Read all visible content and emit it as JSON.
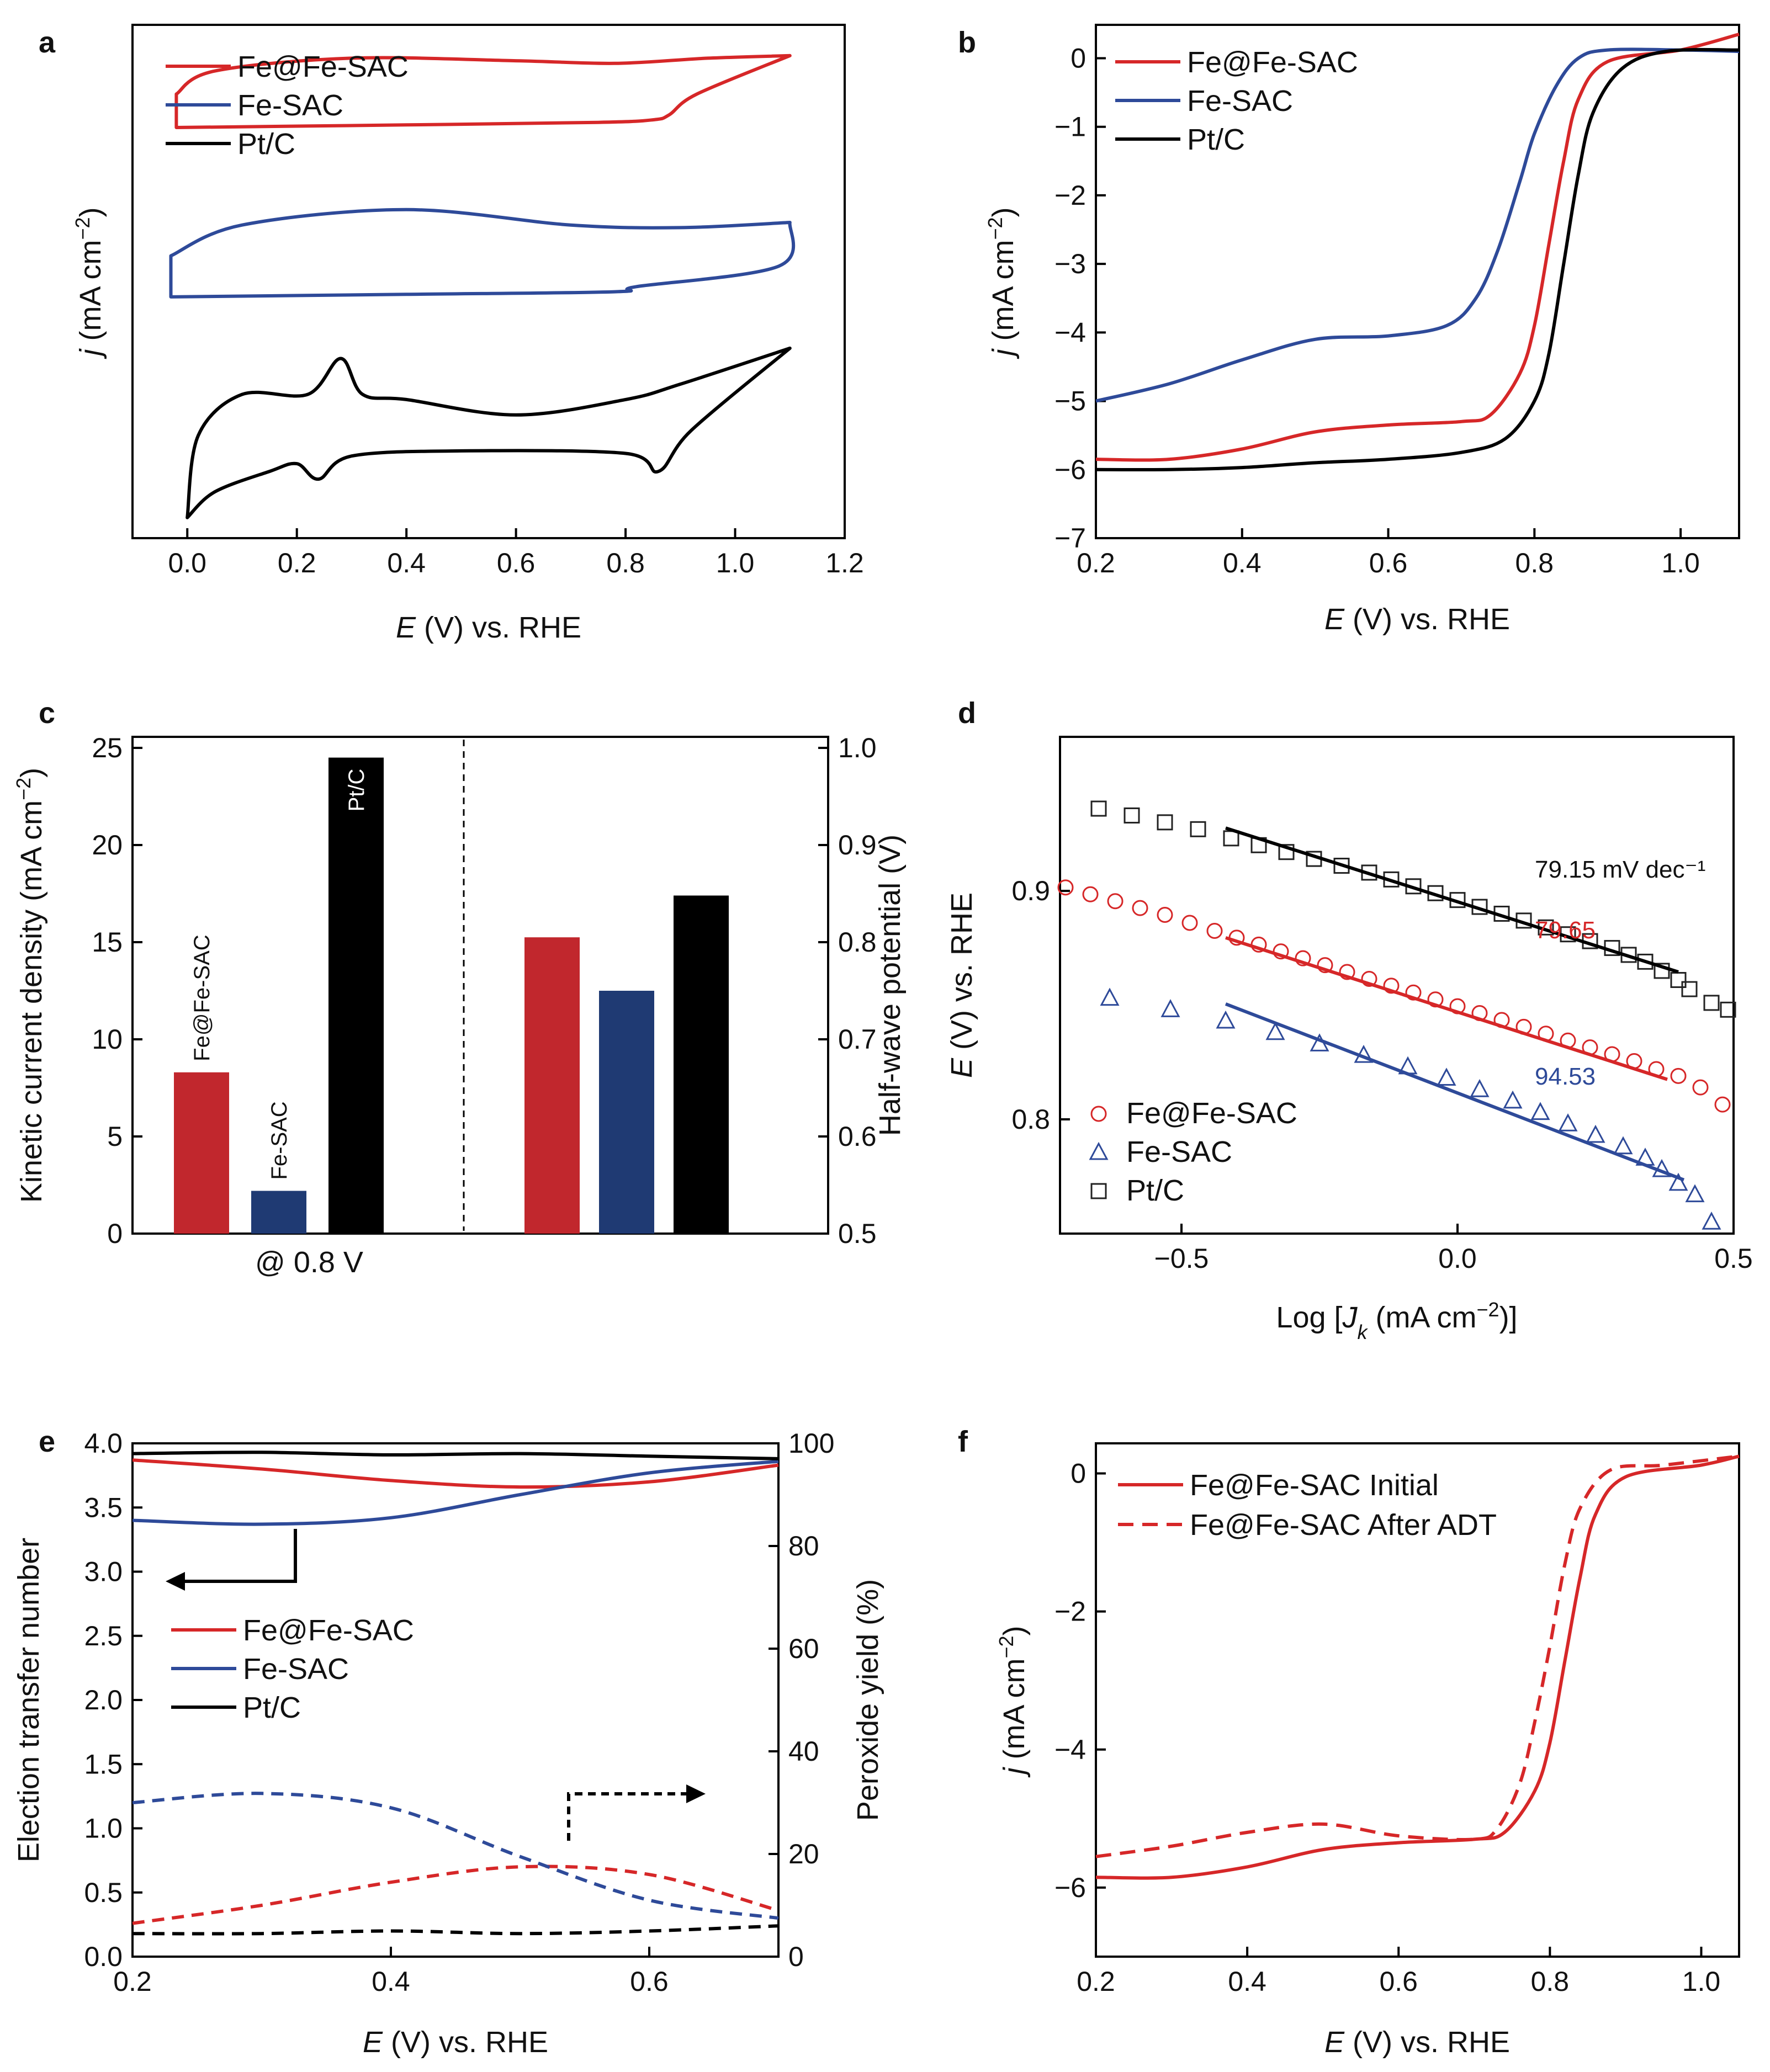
{
  "chart_data": [
    {
      "panel": "a",
      "type": "line",
      "title": "",
      "xlabel": "E (V) vs. RHE",
      "ylabel": "j (mA cm^-2)",
      "xlim": [
        -0.1,
        1.2
      ],
      "xticks": [
        "0.0",
        "0.2",
        "0.4",
        "0.6",
        "0.8",
        "1.0",
        "1.2"
      ],
      "legend": "top-left",
      "series": [
        {
          "name": "Fe@Fe-SAC",
          "color": "#d62728",
          "upper": [
            [
              -0.02,
              0.865
            ],
            [
              0.05,
              0.91
            ],
            [
              0.3,
              0.935
            ],
            [
              0.6,
              0.93
            ],
            [
              0.78,
              0.925
            ],
            [
              0.95,
              0.935
            ],
            [
              1.1,
              0.94
            ]
          ],
          "lower": [
            [
              -0.02,
              0.8
            ],
            [
              0.4,
              0.805
            ],
            [
              0.75,
              0.81
            ],
            [
              0.85,
              0.815
            ],
            [
              0.88,
              0.825
            ],
            [
              0.93,
              0.865
            ],
            [
              1.1,
              0.94
            ]
          ]
        },
        {
          "name": "Fe-SAC",
          "color": "#2e4a99",
          "upper": [
            [
              -0.03,
              0.55
            ],
            [
              0.1,
              0.61
            ],
            [
              0.4,
              0.64
            ],
            [
              0.7,
              0.61
            ],
            [
              0.9,
              0.605
            ],
            [
              1.1,
              0.615
            ]
          ],
          "lower": [
            [
              -0.03,
              0.47
            ],
            [
              0.4,
              0.475
            ],
            [
              0.78,
              0.48
            ],
            [
              0.82,
              0.49
            ],
            [
              1.08,
              0.53
            ],
            [
              1.1,
              0.615
            ]
          ]
        },
        {
          "name": "Pt/C",
          "color": "#000000",
          "upper": [
            [
              0.0,
              0.04
            ],
            [
              0.02,
              0.2
            ],
            [
              0.1,
              0.28
            ],
            [
              0.22,
              0.28
            ],
            [
              0.28,
              0.35
            ],
            [
              0.32,
              0.28
            ],
            [
              0.4,
              0.27
            ],
            [
              0.6,
              0.24
            ],
            [
              0.8,
              0.27
            ],
            [
              0.9,
              0.3
            ],
            [
              1.1,
              0.37
            ]
          ],
          "lower": [
            [
              0.0,
              0.04
            ],
            [
              0.05,
              0.09
            ],
            [
              0.15,
              0.13
            ],
            [
              0.2,
              0.145
            ],
            [
              0.24,
              0.115
            ],
            [
              0.3,
              0.16
            ],
            [
              0.5,
              0.17
            ],
            [
              0.8,
              0.165
            ],
            [
              0.86,
              0.13
            ],
            [
              0.92,
              0.21
            ],
            [
              1.1,
              0.37
            ]
          ]
        }
      ]
    },
    {
      "panel": "b",
      "type": "line",
      "xlabel": "E (V) vs. RHE",
      "ylabel": "j (mA cm^-2)",
      "xlim": [
        0.2,
        1.08
      ],
      "ylim": [
        -7,
        0.35
      ],
      "xticks": [
        "0.2",
        "0.4",
        "0.6",
        "0.8",
        "1.0"
      ],
      "yticks": [
        "0",
        "−1",
        "−2",
        "−3",
        "−4",
        "−5",
        "−6",
        "−7"
      ],
      "legend": "top-left",
      "series": [
        {
          "name": "Fe@Fe-SAC",
          "color": "#d62728",
          "x": [
            0.2,
            0.3,
            0.4,
            0.5,
            0.6,
            0.7,
            0.74,
            0.78,
            0.8,
            0.82,
            0.84,
            0.86,
            0.9,
            1.0,
            1.08
          ],
          "y": [
            -5.85,
            -5.85,
            -5.7,
            -5.45,
            -5.35,
            -5.3,
            -5.2,
            -4.6,
            -3.9,
            -2.7,
            -1.5,
            -0.6,
            -0.05,
            0.12,
            0.35
          ]
        },
        {
          "name": "Fe-SAC",
          "color": "#2e4a99",
          "x": [
            0.2,
            0.3,
            0.4,
            0.5,
            0.6,
            0.68,
            0.72,
            0.75,
            0.78,
            0.8,
            0.83,
            0.86,
            0.9,
            1.0,
            1.08
          ],
          "y": [
            -5.0,
            -4.75,
            -4.4,
            -4.1,
            -4.05,
            -3.9,
            -3.5,
            -2.8,
            -1.8,
            -1.1,
            -0.4,
            0.0,
            0.12,
            0.12,
            0.1
          ]
        },
        {
          "name": "Pt/C",
          "color": "#000000",
          "x": [
            0.2,
            0.3,
            0.4,
            0.5,
            0.6,
            0.7,
            0.76,
            0.8,
            0.82,
            0.84,
            0.86,
            0.88,
            0.92,
            0.98,
            1.08
          ],
          "y": [
            -6.0,
            -6.0,
            -5.97,
            -5.9,
            -5.85,
            -5.75,
            -5.55,
            -5.0,
            -4.3,
            -3.0,
            -1.7,
            -0.8,
            -0.15,
            0.1,
            0.12
          ]
        }
      ]
    },
    {
      "panel": "c",
      "type": "bar",
      "ylabel_left": "Kinetic current density (mA cm^-2)",
      "ylabel_right": "Half-wave potential (V)",
      "ylim_left": [
        0,
        25
      ],
      "ylim_right": [
        0.5,
        1.0
      ],
      "yticks_left": [
        "0",
        "5",
        "10",
        "15",
        "20",
        "25"
      ],
      "yticks_right": [
        "0.5",
        "0.6",
        "0.7",
        "0.8",
        "0.9",
        "1.0"
      ],
      "xlabel": "@ 0.8 V",
      "categories": [
        "Fe@Fe-SAC",
        "Fe-SAC",
        "Pt/C"
      ],
      "colors": [
        "#c1272d",
        "#1f3a73",
        "#000000"
      ],
      "kinetic_current": [
        8.3,
        2.2,
        24.5
      ],
      "half_wave": [
        0.805,
        0.75,
        0.848
      ]
    },
    {
      "panel": "d",
      "type": "scatter",
      "xlabel": "Log [J_k (mA cm^-2)]",
      "ylabel": "E (V) vs. RHE",
      "xlim": [
        -0.72,
        0.5
      ],
      "ylim": [
        0.75,
        0.965
      ],
      "xticks": [
        "−0.5",
        "0.0",
        "0.5"
      ],
      "yticks": [
        "0.8",
        "0.9"
      ],
      "legend": "bottom-left",
      "series": [
        {
          "name": "Fe@Fe-SAC",
          "color": "#d62728",
          "marker": "circle",
          "x": [
            -0.71,
            -0.665,
            -0.62,
            -0.575,
            -0.53,
            -0.485,
            -0.44,
            -0.4,
            -0.36,
            -0.32,
            -0.28,
            -0.24,
            -0.2,
            -0.16,
            -0.12,
            -0.08,
            -0.04,
            0.0,
            0.04,
            0.08,
            0.12,
            0.16,
            0.2,
            0.24,
            0.28,
            0.32,
            0.36,
            0.4,
            0.44,
            0.48
          ],
          "y": [
            0.9015,
            0.8985,
            0.8955,
            0.8925,
            0.8895,
            0.886,
            0.8825,
            0.8795,
            0.8765,
            0.8735,
            0.8705,
            0.8675,
            0.8645,
            0.8615,
            0.8585,
            0.8555,
            0.8525,
            0.8495,
            0.8465,
            0.8435,
            0.8405,
            0.8375,
            0.8345,
            0.8315,
            0.8285,
            0.8255,
            0.822,
            0.819,
            0.814,
            0.8065
          ]
        },
        {
          "name": "Fe-SAC",
          "color": "#2e4a99",
          "marker": "triangle",
          "x": [
            -0.63,
            -0.52,
            -0.42,
            -0.33,
            -0.25,
            -0.17,
            -0.09,
            -0.02,
            0.04,
            0.1,
            0.15,
            0.2,
            0.25,
            0.3,
            0.34,
            0.37,
            0.4,
            0.43,
            0.46
          ],
          "y": [
            0.853,
            0.848,
            0.843,
            0.838,
            0.833,
            0.828,
            0.823,
            0.818,
            0.813,
            0.808,
            0.803,
            0.798,
            0.793,
            0.788,
            0.783,
            0.778,
            0.772,
            0.767,
            0.755
          ]
        },
        {
          "name": "Pt/C",
          "color": "#222222",
          "marker": "square",
          "x": [
            -0.65,
            -0.59,
            -0.53,
            -0.47,
            -0.41,
            -0.36,
            -0.31,
            -0.26,
            -0.21,
            -0.16,
            -0.12,
            -0.08,
            -0.04,
            0.0,
            0.04,
            0.08,
            0.12,
            0.16,
            0.2,
            0.24,
            0.28,
            0.31,
            0.34,
            0.37,
            0.4,
            0.42,
            0.46,
            0.49
          ],
          "y": [
            0.936,
            0.933,
            0.93,
            0.927,
            0.923,
            0.92,
            0.917,
            0.914,
            0.911,
            0.908,
            0.905,
            0.902,
            0.899,
            0.896,
            0.893,
            0.89,
            0.887,
            0.884,
            0.881,
            0.878,
            0.875,
            0.872,
            0.869,
            0.865,
            0.861,
            0.857,
            0.851,
            0.848
          ]
        }
      ],
      "fits": [
        {
          "name": "Pt/C",
          "color": "#000000",
          "x": [
            -0.42,
            0.4
          ],
          "y": [
            0.9275,
            0.8645
          ],
          "label": "79.15 mV dec⁻¹"
        },
        {
          "name": "Fe@Fe-SAC",
          "color": "#d62728",
          "x": [
            -0.42,
            0.38
          ],
          "y": [
            0.8795,
            0.8175
          ],
          "label": "79.65"
        },
        {
          "name": "Fe-SAC",
          "color": "#2e4a99",
          "x": [
            -0.42,
            0.41
          ],
          "y": [
            0.8505,
            0.7735
          ],
          "label": "94.53"
        }
      ]
    },
    {
      "panel": "e",
      "type": "line",
      "xlabel": "E (V) vs. RHE",
      "ylabel_left": "Election transfer number",
      "ylabel_right": "Peroxide yield (%)",
      "xlim": [
        0.2,
        0.7
      ],
      "ylim_left": [
        0,
        4.0
      ],
      "ylim_right": [
        0,
        100
      ],
      "xticks": [
        "0.2",
        "0.4",
        "0.6"
      ],
      "yticks_left": [
        "0.0",
        "0.5",
        "1.0",
        "1.5",
        "2.0",
        "2.5",
        "3.0",
        "3.5",
        "4.0"
      ],
      "yticks_right": [
        "0",
        "20",
        "40",
        "60",
        "80",
        "100"
      ],
      "legend": "middle-left",
      "electron_transfer": [
        {
          "name": "Fe@Fe-SAC",
          "color": "#d62728",
          "x": [
            0.2,
            0.3,
            0.4,
            0.5,
            0.6,
            0.7
          ],
          "y": [
            3.87,
            3.8,
            3.71,
            3.66,
            3.7,
            3.83
          ]
        },
        {
          "name": "Fe-SAC",
          "color": "#2e4a99",
          "x": [
            0.2,
            0.3,
            0.4,
            0.5,
            0.6,
            0.7
          ],
          "y": [
            3.4,
            3.37,
            3.42,
            3.6,
            3.77,
            3.86
          ]
        },
        {
          "name": "Pt/C",
          "color": "#000000",
          "x": [
            0.2,
            0.3,
            0.4,
            0.5,
            0.6,
            0.7
          ],
          "y": [
            3.92,
            3.93,
            3.91,
            3.92,
            3.9,
            3.88
          ]
        }
      ],
      "peroxide_yield": [
        {
          "name": "Fe@Fe-SAC",
          "color": "#d62728",
          "x": [
            0.2,
            0.3,
            0.4,
            0.5,
            0.6,
            0.7
          ],
          "y": [
            6.5,
            10,
            14.5,
            17.5,
            16,
            9
          ]
        },
        {
          "name": "Fe-SAC",
          "color": "#2e4a99",
          "x": [
            0.2,
            0.3,
            0.4,
            0.5,
            0.6,
            0.7
          ],
          "y": [
            30,
            31.8,
            29,
            19.5,
            11,
            7.5
          ]
        },
        {
          "name": "Pt/C",
          "color": "#000000",
          "x": [
            0.2,
            0.3,
            0.4,
            0.5,
            0.6,
            0.7
          ],
          "y": [
            4.5,
            4.5,
            5,
            4.5,
            5,
            6
          ]
        }
      ]
    },
    {
      "panel": "f",
      "type": "line",
      "xlabel": "E (V) vs. RHE",
      "ylabel": "j (mA cm^-2)",
      "xlim": [
        0.2,
        1.05
      ],
      "ylim": [
        -7,
        0.3
      ],
      "xticks": [
        "0.2",
        "0.4",
        "0.6",
        "0.8",
        "1.0"
      ],
      "yticks": [
        "0",
        "−2",
        "−4",
        "−6"
      ],
      "legend": "top-left",
      "series": [
        {
          "name": "Fe@Fe-SAC Initial",
          "color": "#d62728",
          "dash": false,
          "x": [
            0.2,
            0.3,
            0.4,
            0.5,
            0.6,
            0.7,
            0.74,
            0.78,
            0.8,
            0.82,
            0.84,
            0.86,
            0.9,
            1.0,
            1.05
          ],
          "y": [
            -5.85,
            -5.85,
            -5.7,
            -5.45,
            -5.35,
            -5.3,
            -5.2,
            -4.6,
            -3.9,
            -2.7,
            -1.5,
            -0.6,
            -0.05,
            0.12,
            0.25
          ]
        },
        {
          "name": "Fe@Fe-SAC After ADT",
          "color": "#d62728",
          "dash": true,
          "x": [
            0.2,
            0.3,
            0.4,
            0.5,
            0.6,
            0.7,
            0.73,
            0.76,
            0.78,
            0.8,
            0.82,
            0.84,
            0.88,
            0.95,
            1.05
          ],
          "y": [
            -5.55,
            -5.4,
            -5.2,
            -5.08,
            -5.25,
            -5.3,
            -5.15,
            -4.5,
            -3.6,
            -2.5,
            -1.3,
            -0.5,
            0.05,
            0.12,
            0.25
          ]
        }
      ]
    }
  ],
  "panels": {
    "a": {
      "label": "a",
      "xticks": [
        "0.0",
        "0.2",
        "0.4",
        "0.6",
        "0.8",
        "1.0",
        "1.2"
      ],
      "xlabel_italic": "E",
      "xlabel_rest": " (V) vs. RHE",
      "ylabel_italic": "j",
      "ylabel_rest": " (mA cm",
      "legend": [
        "Fe@Fe-SAC",
        "Fe-SAC",
        "Pt/C"
      ]
    },
    "b": {
      "label": "b",
      "xticks": [
        "0.2",
        "0.4",
        "0.6",
        "0.8",
        "1.0"
      ],
      "yticks": [
        "0",
        "−1",
        "−2",
        "−3",
        "−4",
        "−5",
        "−6",
        "−7"
      ],
      "xlabel_italic": "E",
      "xlabel_rest": " (V) vs. RHE",
      "ylabel_italic": "j",
      "ylabel_rest": " (mA cm",
      "legend": [
        "Fe@Fe-SAC",
        "Fe-SAC",
        "Pt/C"
      ]
    },
    "c": {
      "label": "c",
      "yticks_left": [
        "0",
        "5",
        "10",
        "15",
        "20",
        "25"
      ],
      "yticks_right": [
        "0.5",
        "0.6",
        "0.7",
        "0.8",
        "0.9",
        "1.0"
      ],
      "ylabel_left": "Kinetic current density (mA cm",
      "ylabel_right": "Half-wave potential (V)",
      "xlabel": "@ 0.8 V",
      "bar_labels": [
        "Fe@Fe-SAC",
        "Fe-SAC",
        "Pt/C"
      ]
    },
    "d": {
      "label": "d",
      "xticks": [
        "−0.5",
        "0.0",
        "0.5"
      ],
      "yticks": [
        "0.8",
        "0.9"
      ],
      "ylabel_italic": "E",
      "ylabel_rest": " (V) vs. RHE",
      "xlabel_a": "Log [",
      "xlabel_j": "J",
      "xlabel_k": "k",
      "xlabel_b": " (mA cm",
      "xlabel_c": ")]",
      "slopes": [
        "79.15 mV dec⁻¹",
        "79.65",
        "94.53"
      ],
      "legend": [
        "Fe@Fe-SAC",
        "Fe-SAC",
        "Pt/C"
      ]
    },
    "e": {
      "label": "e",
      "xticks": [
        "0.2",
        "0.4",
        "0.6"
      ],
      "yticks_left": [
        "0.0",
        "0.5",
        "1.0",
        "1.5",
        "2.0",
        "2.5",
        "3.0",
        "3.5",
        "4.0"
      ],
      "yticks_right": [
        "0",
        "20",
        "40",
        "60",
        "80",
        "100"
      ],
      "xlabel_italic": "E",
      "xlabel_rest": " (V) vs. RHE",
      "ylabel_left": "Election transfer number",
      "ylabel_right": "Peroxide yield (%)",
      "legend": [
        "Fe@Fe-SAC",
        "Fe-SAC",
        "Pt/C"
      ]
    },
    "f": {
      "label": "f",
      "xticks": [
        "0.2",
        "0.4",
        "0.6",
        "0.8",
        "1.0"
      ],
      "yticks": [
        "0",
        "−2",
        "−4",
        "−6"
      ],
      "xlabel_italic": "E",
      "xlabel_rest": " (V) vs. RHE",
      "ylabel_italic": "j",
      "ylabel_rest": " (mA cm",
      "legend": [
        "Fe@Fe-SAC Initial",
        "Fe@Fe-SAC After ADT"
      ]
    },
    "superscript": "−2"
  }
}
